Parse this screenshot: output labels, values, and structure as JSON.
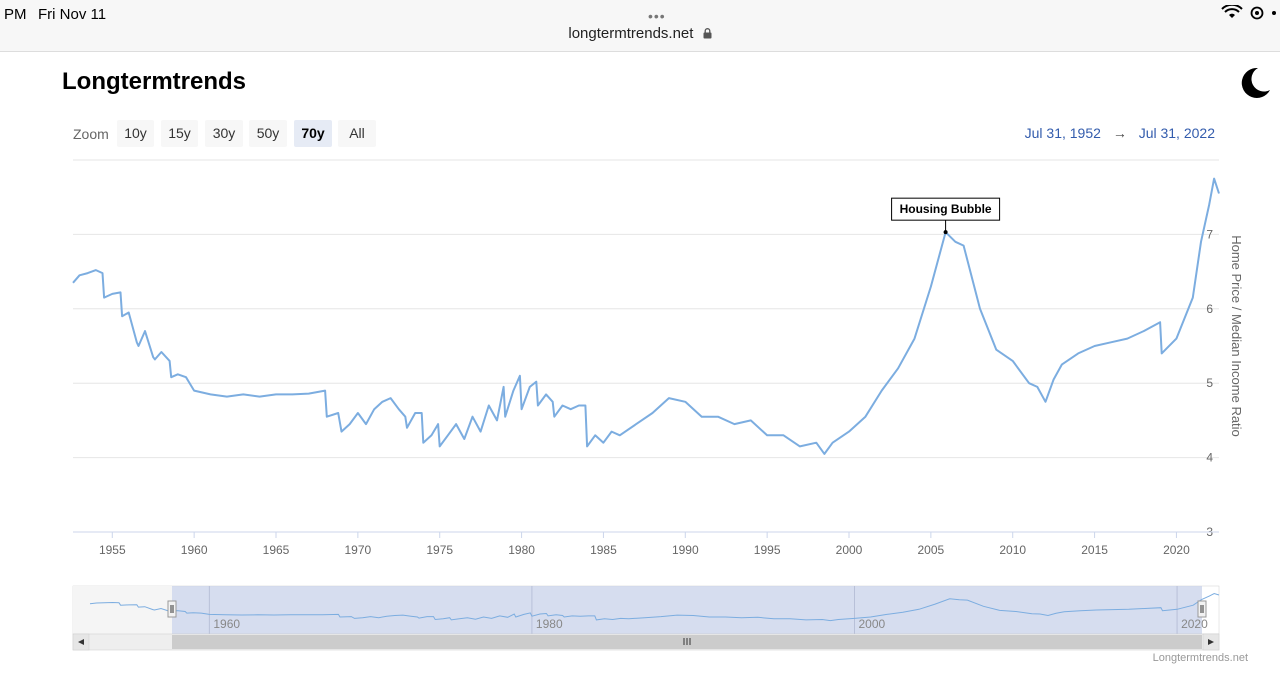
{
  "status_bar": {
    "time": "PM",
    "date": "Fri Nov 11",
    "dots": "•••",
    "url": "longtermtrends.net",
    "indicators": "⌔ ◔ ·"
  },
  "header": {
    "title": "Longtermtrends",
    "theme_icon": "moon-icon"
  },
  "zoom": {
    "label": "Zoom",
    "buttons": [
      "10y",
      "15y",
      "30y",
      "50y",
      "70y",
      "All"
    ],
    "active": "70y"
  },
  "date_range": {
    "from": "Jul 31, 1952",
    "arrow": "→",
    "to": "Jul 31, 2022"
  },
  "credit": "Longtermtrends.net",
  "colors": {
    "series": "#7cade0",
    "navigator_mask": "#c8d2ea",
    "date_link": "#335cad"
  },
  "chart_data": {
    "type": "line",
    "title": "",
    "xlabel": "",
    "ylabel": "Home Price / Median Income Ratio",
    "xlim": [
      1952.6,
      2022.6
    ],
    "ylim": [
      3,
      8
    ],
    "y_axis_side": "right",
    "yticks": [
      3,
      4,
      5,
      6,
      7
    ],
    "xticks": [
      1955,
      1960,
      1965,
      1970,
      1975,
      1980,
      1985,
      1990,
      1995,
      2000,
      2005,
      2010,
      2015,
      2020
    ],
    "grid": "horizontal",
    "annotation": {
      "text": "Housing Bubble",
      "x": 2005.9,
      "y": 7.03
    },
    "series": [
      {
        "x": [
          1952.6,
          1953.0,
          1953.5,
          1954.0,
          1954.4,
          1954.5,
          1955.0,
          1955.5,
          1955.6,
          1956.0,
          1956.5,
          1956.6,
          1957.0,
          1957.5,
          1957.6,
          1958.0,
          1958.5,
          1958.6,
          1959.0,
          1959.5,
          1960.0,
          1961.0,
          1962.0,
          1963.0,
          1964.0,
          1965.0,
          1966.0,
          1967.0,
          1968.0,
          1968.1,
          1968.8,
          1969.0,
          1969.5,
          1970.0,
          1970.5,
          1971.0,
          1971.5,
          1972.0,
          1972.5,
          1972.9,
          1973.0,
          1973.5,
          1973.9,
          1974.0,
          1974.5,
          1974.9,
          1975.0,
          1975.5,
          1976.0,
          1976.5,
          1977.0,
          1977.5,
          1978.0,
          1978.5,
          1978.9,
          1979.0,
          1979.5,
          1979.9,
          1980.0,
          1980.5,
          1980.9,
          1981.0,
          1981.5,
          1981.9,
          1982.0,
          1982.5,
          1983.0,
          1983.5,
          1983.9,
          1984.0,
          1984.5,
          1985.0,
          1985.5,
          1986.0,
          1987.0,
          1988.0,
          1989.0,
          1990.0,
          1991.0,
          1992.0,
          1993.0,
          1994.0,
          1995.0,
          1996.0,
          1997.0,
          1998.0,
          1998.5,
          1999.0,
          2000.0,
          2001.0,
          2002.0,
          2003.0,
          2004.0,
          2005.0,
          2005.9,
          2006.5,
          2007.0,
          2008.0,
          2009.0,
          2010.0,
          2011.0,
          2011.5,
          2012.0,
          2012.5,
          2013.0,
          2014.0,
          2015.0,
          2016.0,
          2017.0,
          2018.0,
          2019.0,
          2019.1,
          2020.0,
          2021.0,
          2021.5,
          2022.0,
          2022.3,
          2022.6
        ],
        "y": [
          6.35,
          6.45,
          6.48,
          6.52,
          6.48,
          6.15,
          6.2,
          6.22,
          5.9,
          5.95,
          5.55,
          5.5,
          5.7,
          5.35,
          5.32,
          5.42,
          5.3,
          5.08,
          5.12,
          5.08,
          4.9,
          4.85,
          4.82,
          4.85,
          4.82,
          4.85,
          4.85,
          4.86,
          4.9,
          4.55,
          4.6,
          4.35,
          4.45,
          4.6,
          4.45,
          4.65,
          4.75,
          4.8,
          4.65,
          4.55,
          4.4,
          4.6,
          4.6,
          4.2,
          4.3,
          4.45,
          4.15,
          4.3,
          4.45,
          4.25,
          4.55,
          4.35,
          4.7,
          4.5,
          4.95,
          4.55,
          4.9,
          5.1,
          4.65,
          4.95,
          5.02,
          4.7,
          4.85,
          4.75,
          4.55,
          4.7,
          4.65,
          4.7,
          4.7,
          4.15,
          4.3,
          4.2,
          4.35,
          4.3,
          4.45,
          4.6,
          4.8,
          4.75,
          4.55,
          4.55,
          4.45,
          4.5,
          4.3,
          4.3,
          4.15,
          4.2,
          4.05,
          4.2,
          4.35,
          4.55,
          4.9,
          5.2,
          5.6,
          6.3,
          7.03,
          6.9,
          6.85,
          6.0,
          5.45,
          5.3,
          5.0,
          4.95,
          4.75,
          5.05,
          5.25,
          5.4,
          5.5,
          5.55,
          5.6,
          5.7,
          5.82,
          5.4,
          5.6,
          6.15,
          6.9,
          7.4,
          7.75,
          7.55
        ]
      }
    ]
  }
}
